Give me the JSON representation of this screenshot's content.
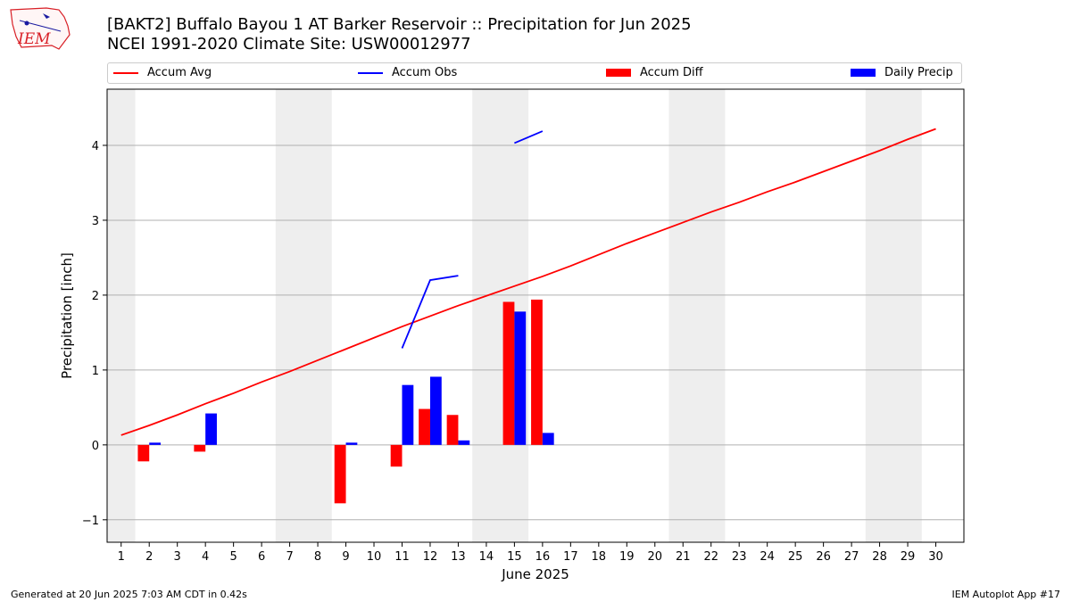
{
  "title_line1": "[BAKT2] Buffalo Bayou 1 AT Barker Reservoir :: Precipitation for Jun 2025",
  "title_line2": "NCEI 1991-2020 Climate Site: USW00012977",
  "logo": {
    "text": "IEM",
    "color": "#d81f26"
  },
  "footer": {
    "left": "Generated at 20 Jun 2025 7:03 AM CDT in 0.42s",
    "right": "IEM Autoplot App #17"
  },
  "chart_data": {
    "type": "bar",
    "xlabel": "June 2025",
    "ylabel": "Precipitation [inch]",
    "ylim": [
      -1.3,
      4.75
    ],
    "xlim": [
      0.5,
      31
    ],
    "yticks": [
      -1,
      0,
      1,
      2,
      3,
      4
    ],
    "ytick_labels": [
      "−1",
      "0",
      "1",
      "2",
      "3",
      "4"
    ],
    "days": [
      1,
      2,
      3,
      4,
      5,
      6,
      7,
      8,
      9,
      10,
      11,
      12,
      13,
      14,
      15,
      16,
      17,
      18,
      19,
      20,
      21,
      22,
      23,
      24,
      25,
      26,
      27,
      28,
      29,
      30
    ],
    "grid": "horizontal",
    "weekend_shading": [
      [
        0.5,
        1.5
      ],
      [
        6.5,
        8.5
      ],
      [
        13.5,
        15.5
      ],
      [
        20.5,
        22.5
      ],
      [
        27.5,
        29.5
      ]
    ],
    "legend_position": "top",
    "series": [
      {
        "name": "Accum Avg",
        "kind": "line",
        "color": "#ff0000",
        "x": [
          1,
          2,
          3,
          4,
          5,
          6,
          7,
          8,
          9,
          10,
          11,
          12,
          13,
          14,
          15,
          16,
          17,
          18,
          19,
          20,
          21,
          22,
          23,
          24,
          25,
          26,
          27,
          28,
          29,
          30
        ],
        "values": [
          0.13,
          0.26,
          0.4,
          0.55,
          0.69,
          0.84,
          0.98,
          1.13,
          1.28,
          1.43,
          1.58,
          1.72,
          1.86,
          1.99,
          2.12,
          2.25,
          2.39,
          2.54,
          2.69,
          2.83,
          2.97,
          3.11,
          3.24,
          3.38,
          3.51,
          3.65,
          3.79,
          3.93,
          4.08,
          4.22
        ]
      },
      {
        "name": "Accum Obs",
        "kind": "line",
        "color": "#0000ff",
        "segments": [
          {
            "x": [
              11,
              12,
              13
            ],
            "values": [
              1.29,
              2.2,
              2.26
            ]
          },
          {
            "x": [
              15,
              16
            ],
            "values": [
              4.03,
              4.19
            ]
          }
        ]
      },
      {
        "name": "Accum Diff",
        "kind": "bar",
        "color": "#ff0000",
        "x": [
          2,
          4,
          9,
          11,
          12,
          13,
          15,
          16
        ],
        "values": [
          -0.22,
          -0.09,
          -0.78,
          -0.29,
          0.48,
          0.4,
          1.91,
          1.94
        ]
      },
      {
        "name": "Daily Precip",
        "kind": "bar",
        "color": "#0000ff",
        "x": [
          2,
          4,
          9,
          11,
          12,
          13,
          15,
          16
        ],
        "values": [
          0.03,
          0.42,
          0.03,
          0.8,
          0.91,
          0.06,
          1.78,
          0.16
        ]
      }
    ]
  }
}
